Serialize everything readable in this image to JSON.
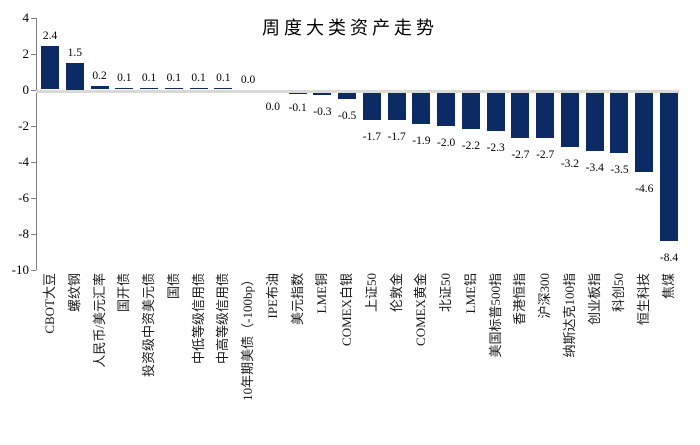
{
  "figure": {
    "title": "周度大类资产走势"
  },
  "chart_data": {
    "type": "bar",
    "title": "周度大类资产走势",
    "categories": [
      "CBOT大豆",
      "螺纹钢",
      "人民币/美元汇率",
      "国开债",
      "投资级中资美元债",
      "国债",
      "中低等级信用债",
      "中高等级信用债",
      "10年期美债（-100bp）",
      "IPE布油",
      "美元指数",
      "LME铜",
      "COMEX白银",
      "上证50",
      "伦敦金",
      "COMEX黄金",
      "北证50",
      "LME铝",
      "美国标普500指",
      "香港恒指",
      "沪深300",
      "纳斯达克100指",
      "创业板指",
      "科创50",
      "恒生科技",
      "焦煤"
    ],
    "values": [
      2.4,
      1.5,
      0.2,
      0.1,
      0.1,
      0.1,
      0.1,
      0.1,
      0.0,
      0.0,
      -0.1,
      -0.3,
      -0.5,
      -1.7,
      -1.7,
      -1.9,
      -2.0,
      -2.2,
      -2.3,
      -2.7,
      -2.7,
      -3.2,
      -3.4,
      -3.5,
      -4.6,
      -8.4
    ],
    "value_label_decimals": 1,
    "label_below_from_index": 9,
    "ylim": [
      -10,
      4
    ],
    "yticks": [
      4,
      2,
      0,
      -2,
      -4,
      -6,
      -8,
      -10
    ],
    "xlabel": "",
    "ylabel": "",
    "grid": false,
    "legend": "none",
    "bar_color": "#0c2a63",
    "zero_line_color": "#d9d9d9",
    "axis_color": "#7f7f7f",
    "text_color": "#000000"
  }
}
